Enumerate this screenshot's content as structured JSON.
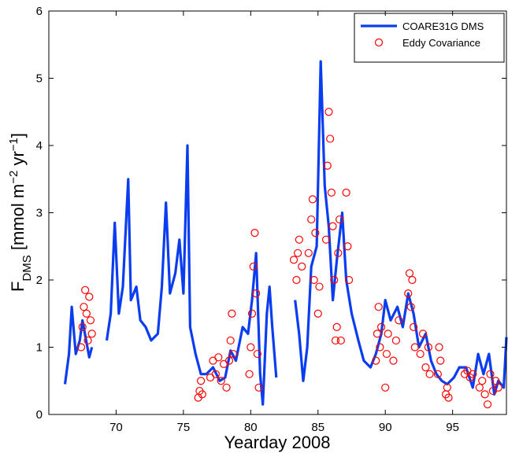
{
  "chart_data": {
    "type": "line",
    "xlabel": "Yearday 2008",
    "ylabel_parts": [
      {
        "text": "F"
      },
      {
        "text": "DMS",
        "shift": "sub"
      },
      {
        "text": " [mmol m"
      },
      {
        "text": "−2",
        "shift": "super"
      },
      {
        "text": " yr"
      },
      {
        "text": "−1",
        "shift": "super"
      },
      {
        "text": "]"
      }
    ],
    "xlim": [
      65,
      99
    ],
    "ylim": [
      0,
      6
    ],
    "xticks": [
      70,
      75,
      80,
      85,
      90,
      95
    ],
    "yticks": [
      0,
      1,
      2,
      3,
      4,
      5,
      6
    ],
    "grid": false,
    "legend": "northeast",
    "series": [
      {
        "name": "COARE31G DMS",
        "type": "line",
        "color": "#0a3cf0",
        "x": [
          66.2,
          66.5,
          66.7,
          67.0,
          67.3,
          67.5,
          68.0,
          68.2,
          68.8,
          69.3,
          69.6,
          69.9,
          70.2,
          70.5,
          70.9,
          71.1,
          71.5,
          71.8,
          72.2,
          72.6,
          73.1,
          73.4,
          73.7,
          74.0,
          74.4,
          74.7,
          75.0,
          75.3,
          75.5,
          75.9,
          76.3,
          76.7,
          77.2,
          77.7,
          78.1,
          78.5,
          78.9,
          79.4,
          79.8,
          80.1,
          80.4,
          80.7,
          80.9,
          81.2,
          81.4,
          81.6,
          81.9,
          82.6,
          83.3,
          83.6,
          83.9,
          84.2,
          84.5,
          84.9,
          85.2,
          85.5,
          85.8,
          86.1,
          86.4,
          86.8,
          87.1,
          87.5,
          88.0,
          88.4,
          88.9,
          89.3,
          89.7,
          90.0,
          90.4,
          90.9,
          91.3,
          91.7,
          92.1,
          92.5,
          93.0,
          93.4,
          93.8,
          94.2,
          94.6,
          95.1,
          95.5,
          96.0,
          96.5,
          96.9,
          97.3,
          97.7,
          98.1,
          98.4,
          98.8,
          99.0
        ],
        "values": [
          0.45,
          0.9,
          1.6,
          0.9,
          1.1,
          1.4,
          0.85,
          1.0,
          null,
          1.1,
          1.5,
          2.85,
          1.5,
          1.9,
          3.5,
          1.7,
          1.9,
          1.4,
          1.3,
          1.1,
          1.2,
          1.9,
          3.15,
          1.8,
          2.1,
          2.6,
          1.8,
          4.0,
          1.3,
          0.9,
          0.6,
          0.6,
          0.7,
          0.5,
          0.55,
          0.95,
          0.8,
          1.3,
          1.2,
          1.7,
          2.4,
          0.6,
          0.15,
          1.5,
          1.9,
          1.3,
          0.55,
          null,
          1.7,
          1.2,
          0.5,
          1.0,
          2.2,
          2.5,
          5.25,
          3.4,
          2.8,
          1.7,
          2.3,
          3.0,
          2.0,
          1.5,
          1.1,
          0.8,
          0.7,
          0.9,
          1.2,
          1.7,
          1.4,
          1.6,
          1.3,
          1.8,
          1.5,
          1.0,
          1.2,
          0.8,
          0.6,
          0.5,
          0.45,
          0.55,
          0.7,
          0.7,
          0.4,
          0.9,
          0.6,
          0.9,
          0.3,
          0.5,
          0.4,
          1.15
        ]
      },
      {
        "name": "Eddy Covariance",
        "type": "scatter",
        "color": "#ff0000",
        "x": [
          67.4,
          67.5,
          67.6,
          67.7,
          67.8,
          67.9,
          68.0,
          68.1,
          68.2,
          76.1,
          76.2,
          76.3,
          76.4,
          77.0,
          77.2,
          77.4,
          77.6,
          77.8,
          78.0,
          78.2,
          78.4,
          78.5,
          78.6,
          78.7,
          79.9,
          80.0,
          80.1,
          80.2,
          80.3,
          80.4,
          80.5,
          80.6,
          83.2,
          83.4,
          83.5,
          83.6,
          83.8,
          84.3,
          84.5,
          84.6,
          84.7,
          84.8,
          85.0,
          85.1,
          85.6,
          85.7,
          85.8,
          85.9,
          86.0,
          86.1,
          86.2,
          86.3,
          86.4,
          86.5,
          86.6,
          86.7,
          87.1,
          87.2,
          87.3,
          89.3,
          89.4,
          89.5,
          89.6,
          89.7,
          90.0,
          90.1,
          90.2,
          90.6,
          90.8,
          91.0,
          91.7,
          91.8,
          91.9,
          92.0,
          92.1,
          92.2,
          92.6,
          92.8,
          93.0,
          93.2,
          93.3,
          93.9,
          94.0,
          94.1,
          94.5,
          94.6,
          94.7,
          95.9,
          96.1,
          96.3,
          96.5,
          97.0,
          97.2,
          97.4,
          97.6,
          97.8,
          98.0,
          98.2,
          98.4
        ],
        "values": [
          1.0,
          1.3,
          1.6,
          1.85,
          1.5,
          1.1,
          1.75,
          1.4,
          1.2,
          0.25,
          0.35,
          0.5,
          0.3,
          0.55,
          0.8,
          0.6,
          0.85,
          0.5,
          0.75,
          0.4,
          0.8,
          1.1,
          1.5,
          0.9,
          0.6,
          1.0,
          1.5,
          2.2,
          2.7,
          1.8,
          0.9,
          0.4,
          2.3,
          2.0,
          2.4,
          2.6,
          2.2,
          2.4,
          2.9,
          3.2,
          2.0,
          2.7,
          1.5,
          1.9,
          2.6,
          3.7,
          4.5,
          4.1,
          3.3,
          2.8,
          2.0,
          1.1,
          1.3,
          2.4,
          2.9,
          1.1,
          3.3,
          2.5,
          2.0,
          0.8,
          1.2,
          1.6,
          1.0,
          1.3,
          0.4,
          0.9,
          1.2,
          0.8,
          1.1,
          1.4,
          1.8,
          2.1,
          1.6,
          2.0,
          1.3,
          1.0,
          0.9,
          1.2,
          0.7,
          1.0,
          0.6,
          0.6,
          1.0,
          0.8,
          0.3,
          0.4,
          0.25,
          0.6,
          0.65,
          0.55,
          0.6,
          0.4,
          0.5,
          0.3,
          0.15,
          0.6,
          0.35,
          0.5,
          0.4
        ]
      }
    ]
  }
}
